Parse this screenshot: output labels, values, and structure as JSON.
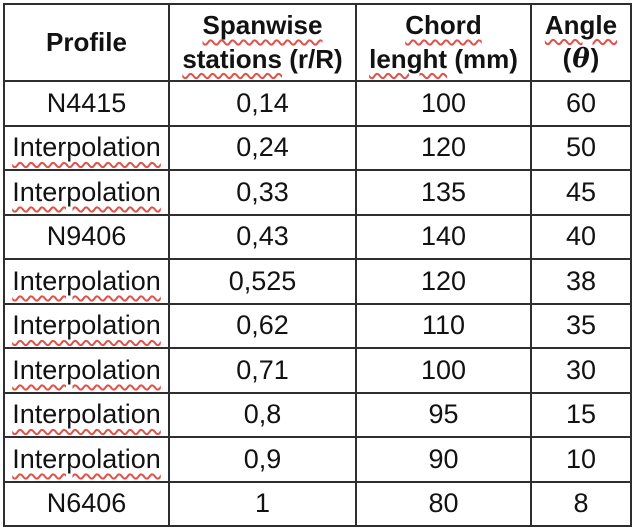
{
  "page": {
    "background_color": "#ffffff",
    "text_color": "#121212",
    "border_color": "#2e2e2e",
    "squiggle_color": "#e0524a"
  },
  "table": {
    "headers": {
      "profile": "Profile",
      "spanwise_line1": "Spanwise",
      "spanwise_line2_word": "stations",
      "spanwise_line2_unit": "(r/R)",
      "chord_line1": "Chord",
      "chord_line2_word": "lenght",
      "chord_line2_unit": "(mm)",
      "angle_line1": "Angle",
      "angle_paren_open": "(",
      "angle_theta": "θ",
      "angle_paren_close": ")"
    },
    "rows": [
      {
        "profile": "N4415",
        "spanwise_station": "0,14",
        "chord_length": "100",
        "angle": "60"
      },
      {
        "profile": "Interpolation",
        "spanwise_station": "0,24",
        "chord_length": "120",
        "angle": "50"
      },
      {
        "profile": "Interpolation",
        "spanwise_station": "0,33",
        "chord_length": "135",
        "angle": "45"
      },
      {
        "profile": "N9406",
        "spanwise_station": "0,43",
        "chord_length": "140",
        "angle": "40"
      },
      {
        "profile": "Interpolation",
        "spanwise_station": "0,525",
        "chord_length": "120",
        "angle": "38"
      },
      {
        "profile": "Interpolation",
        "spanwise_station": "0,62",
        "chord_length": "110",
        "angle": "35"
      },
      {
        "profile": "Interpolation",
        "spanwise_station": "0,71",
        "chord_length": "100",
        "angle": "30"
      },
      {
        "profile": "Interpolation",
        "spanwise_station": "0,8",
        "chord_length": "95",
        "angle": "15"
      },
      {
        "profile": "Interpolation",
        "spanwise_station": "0,9",
        "chord_length": "90",
        "angle": "10"
      },
      {
        "profile": "N6406",
        "spanwise_station": "1",
        "chord_length": "80",
        "angle": "8"
      }
    ]
  }
}
